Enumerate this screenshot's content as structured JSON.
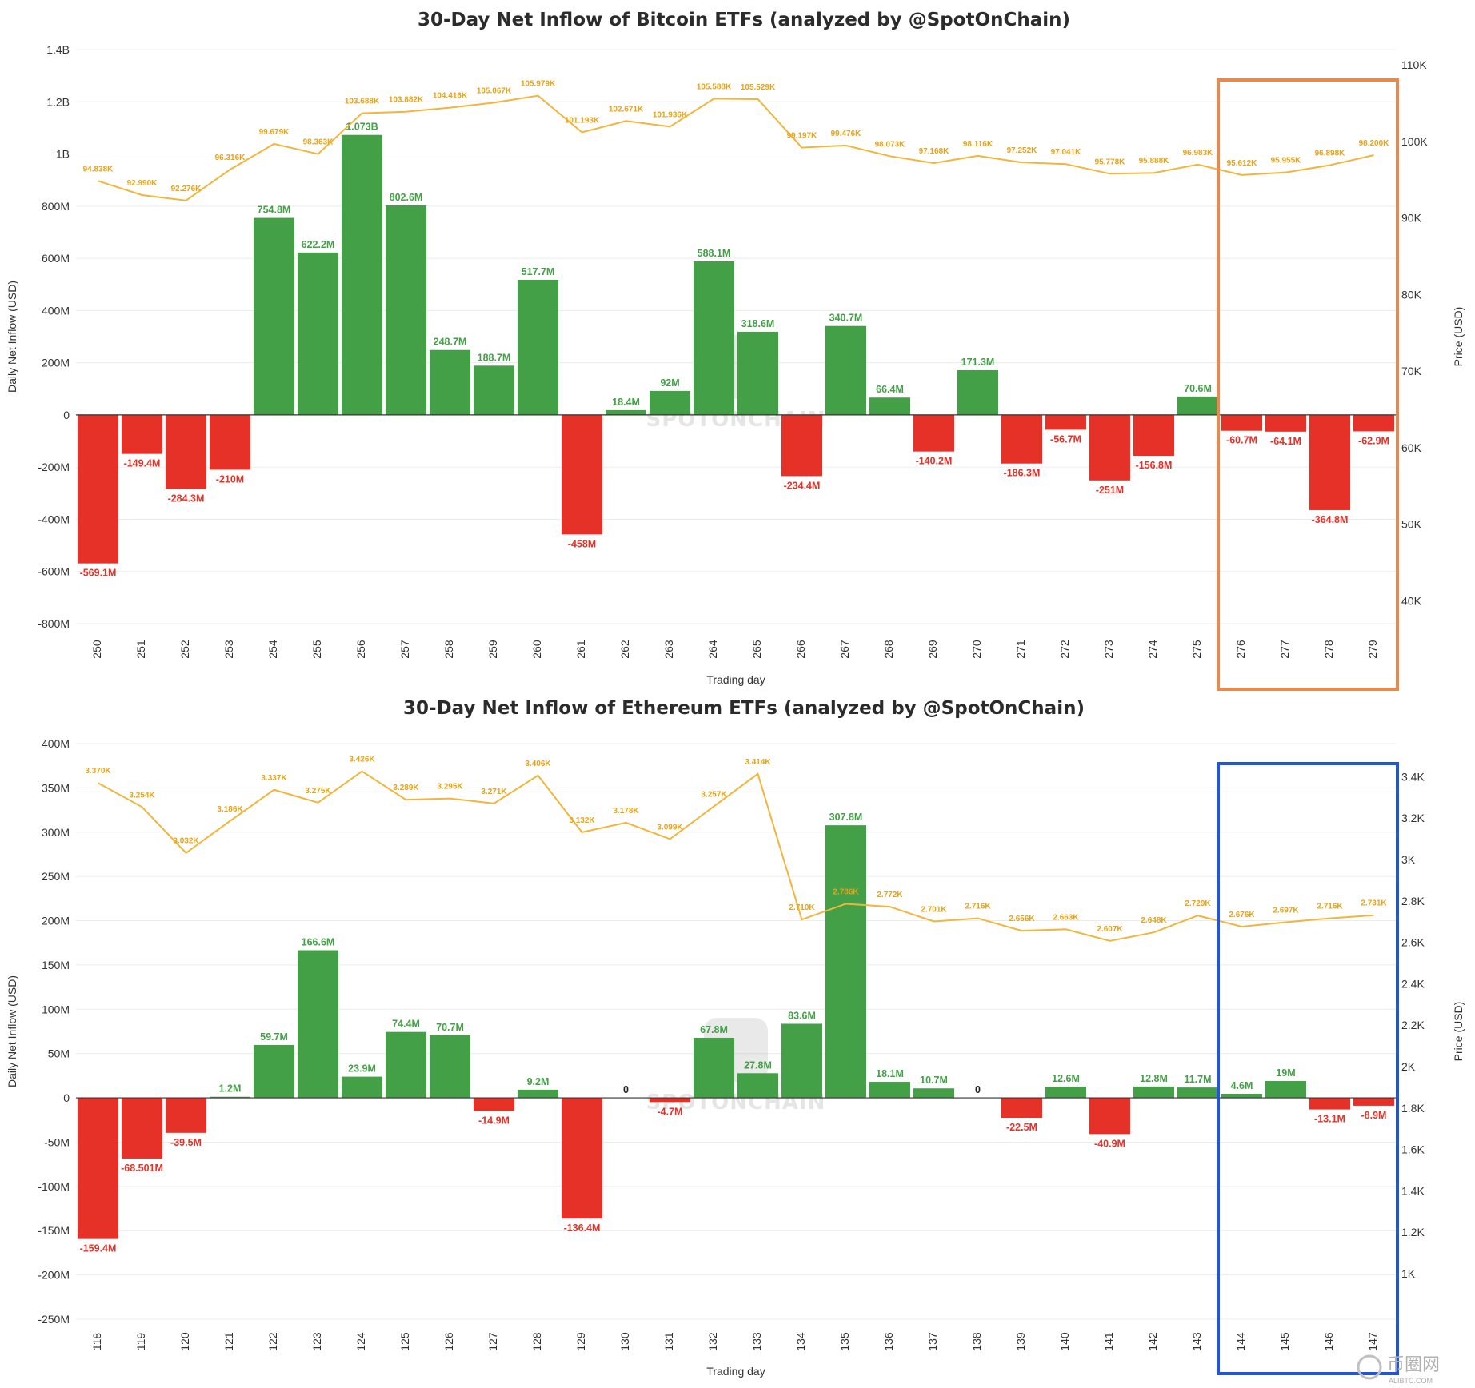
{
  "colors": {
    "positive": "#43a047",
    "negative": "#e53127",
    "price_line": "#f2b53a",
    "btc_highlight": "#e8894d",
    "eth_highlight": "#2255dd"
  },
  "watermark": "SPOTONCHAIN",
  "corner_logo": {
    "brand": "币圈网",
    "sub": "ALIBTC.COM"
  },
  "chart_data": [
    {
      "type": "bar",
      "title": "30-Day Net Inflow of Bitcoin ETFs (analyzed by @SpotOnChain)",
      "xlabel": "Trading day",
      "ylabel": "Daily Net Inflow (USD)",
      "y2label": "Price (USD)",
      "ylim": [
        -800000000,
        1400000000
      ],
      "yticks": [
        -800000000,
        -600000000,
        -400000000,
        -200000000,
        0,
        200000000,
        400000000,
        600000000,
        800000000,
        1000000000,
        1200000000,
        1400000000
      ],
      "ytick_labels": [
        "-800M",
        "-600M",
        "-400M",
        "-200M",
        "0",
        "200M",
        "400M",
        "600M",
        "800M",
        "1B",
        "1.2B",
        "1.4B"
      ],
      "y2lim": [
        37000,
        112000
      ],
      "y2ticks": [
        40000,
        50000,
        60000,
        70000,
        80000,
        90000,
        100000,
        110000
      ],
      "y2tick_labels": [
        "40K",
        "50K",
        "60K",
        "70K",
        "80K",
        "90K",
        "100K",
        "110K"
      ],
      "categories": [
        "250",
        "251",
        "252",
        "253",
        "254",
        "255",
        "256",
        "257",
        "258",
        "259",
        "260",
        "261",
        "262",
        "263",
        "264",
        "265",
        "266",
        "267",
        "268",
        "269",
        "270",
        "271",
        "272",
        "273",
        "274",
        "275",
        "276",
        "277",
        "278",
        "279"
      ],
      "values": [
        -569100000,
        -149400000,
        -284300000,
        -210000000,
        754800000,
        622200000,
        1073000000,
        802600000,
        248700000,
        188700000,
        517700000,
        -458000000,
        18400000,
        92000000,
        588100000,
        318600000,
        -234400000,
        340700000,
        66400000,
        -140200000,
        171300000,
        -186300000,
        -56700000,
        -251000000,
        -156800000,
        70600000,
        -60700000,
        -64100000,
        -364800000,
        -62900000
      ],
      "value_labels": [
        "-569.1M",
        "-149.4M",
        "-284.3M",
        "-210M",
        "754.8M",
        "622.2M",
        "1.073B",
        "802.6M",
        "248.7M",
        "188.7M",
        "517.7M",
        "-458M",
        "18.4M",
        "92M",
        "588.1M",
        "318.6M",
        "-234.4M",
        "340.7M",
        "66.4M",
        "-140.2M",
        "171.3M",
        "-186.3M",
        "-56.7M",
        "-251M",
        "-156.8M",
        "70.6M",
        "-60.7M",
        "-64.1M",
        "-364.8M",
        "-62.9M"
      ],
      "price_values": [
        94838,
        92990,
        92276,
        96316,
        99679,
        98363,
        103688,
        103882,
        104416,
        105067,
        105979,
        101193,
        102671,
        101936,
        105588,
        105529,
        99197,
        99476,
        98073,
        97168,
        98116,
        97252,
        97041,
        95778,
        95888,
        96983,
        95612,
        95955,
        96898,
        98200
      ],
      "price_labels": [
        "94.838K",
        "92.990K",
        "92.276K",
        "96.316K",
        "99.679K",
        "98.363K",
        "103.688K",
        "103.882K",
        "104.416K",
        "105.067K",
        "105.979K",
        "101.193K",
        "102.671K",
        "101.936K",
        "105.588K",
        "105.529K",
        "99.197K",
        "99.476K",
        "98.073K",
        "97.168K",
        "98.116K",
        "97.252K",
        "97.041K",
        "95.778K",
        "95.888K",
        "96.983K",
        "95.612K",
        "95.955K",
        "96.898K",
        "98.200K"
      ],
      "highlight": {
        "from": "276",
        "to": "279",
        "color": "orange"
      }
    },
    {
      "type": "bar",
      "title": "30-Day Net Inflow of Ethereum ETFs (analyzed by @SpotOnChain)",
      "xlabel": "Trading day",
      "ylabel": "Daily Net Inflow (USD)",
      "y2label": "Price (USD)",
      "ylim": [
        -250000000,
        400000000
      ],
      "yticks": [
        -250000000,
        -200000000,
        -150000000,
        -100000000,
        -50000000,
        0,
        50000000,
        100000000,
        150000000,
        200000000,
        250000000,
        300000000,
        350000000,
        400000000
      ],
      "ytick_labels": [
        "-250M",
        "-200M",
        "-150M",
        "-100M",
        "-50M",
        "0",
        "50M",
        "100M",
        "150M",
        "200M",
        "250M",
        "300M",
        "350M",
        "400M"
      ],
      "y2lim": [
        780,
        3560
      ],
      "y2ticks": [
        1000,
        1200,
        1400,
        1600,
        1800,
        2000,
        2200,
        2400,
        2600,
        2800,
        3000,
        3200,
        3400
      ],
      "y2tick_labels": [
        "1K",
        "1.2K",
        "1.4K",
        "1.6K",
        "1.8K",
        "2K",
        "2.2K",
        "2.4K",
        "2.6K",
        "2.8K",
        "3K",
        "3.2K",
        "3.4K"
      ],
      "categories": [
        "118",
        "119",
        "120",
        "121",
        "122",
        "123",
        "124",
        "125",
        "126",
        "127",
        "128",
        "129",
        "130",
        "131",
        "132",
        "133",
        "134",
        "135",
        "136",
        "137",
        "138",
        "139",
        "140",
        "141",
        "142",
        "143",
        "144",
        "145",
        "146",
        "147"
      ],
      "values": [
        -159400000,
        -68501000,
        -39500000,
        1200000,
        59700000,
        166600000,
        23900000,
        74400000,
        70700000,
        -14900000,
        9200000,
        -136400000,
        0,
        -4700000,
        67800000,
        27800000,
        83600000,
        307800000,
        18100000,
        10700000,
        0,
        -22500000,
        12600000,
        -40900000,
        12800000,
        11700000,
        4600000,
        19000000,
        -13100000,
        -8900000
      ],
      "value_labels": [
        "-159.4M",
        "-68.501M",
        "-39.5M",
        "1.2M",
        "59.7M",
        "166.6M",
        "23.9M",
        "74.4M",
        "70.7M",
        "-14.9M",
        "9.2M",
        "-136.4M",
        "0",
        "-4.7M",
        "67.8M",
        "27.8M",
        "83.6M",
        "307.8M",
        "18.1M",
        "10.7M",
        "0",
        "-22.5M",
        "12.6M",
        "-40.9M",
        "12.8M",
        "11.7M",
        "4.6M",
        "19M",
        "-13.1M",
        "-8.9M"
      ],
      "price_values": [
        3370,
        3254,
        3032,
        3186,
        3337,
        3275,
        3426,
        3289,
        3295,
        3271,
        3406,
        3132,
        3178,
        3099,
        3257,
        3414,
        2710,
        2786,
        2772,
        2701,
        2716,
        2656,
        2663,
        2607,
        2648,
        2729,
        2676,
        2697,
        2716,
        2731
      ],
      "price_labels": [
        "3.370K",
        "3.254K",
        "3.032K",
        "3.186K",
        "3.337K",
        "3.275K",
        "3.426K",
        "3.289K",
        "3.295K",
        "3.271K",
        "3.406K",
        "3.132K",
        "3.178K",
        "3.099K",
        "3.257K",
        "3.414K",
        "2.710K",
        "2.786K",
        "2.772K",
        "2.701K",
        "2.716K",
        "2.656K",
        "2.663K",
        "2.607K",
        "2.648K",
        "2.729K",
        "2.676K",
        "2.697K",
        "2.716K",
        "2.731K"
      ],
      "highlight": {
        "from": "144",
        "to": "147",
        "color": "blue"
      }
    }
  ]
}
